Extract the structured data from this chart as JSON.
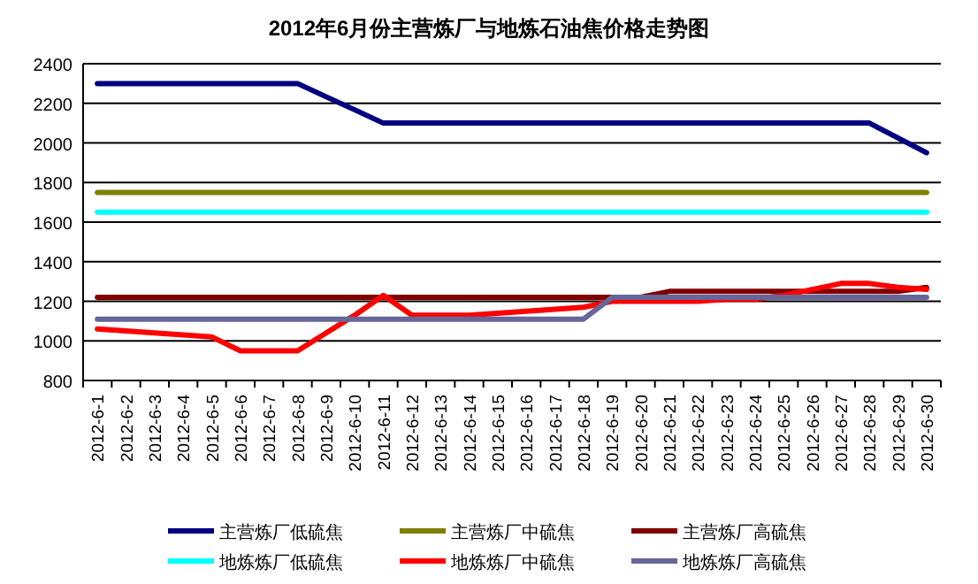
{
  "chart_data": {
    "type": "line",
    "title": "2012年6月份主营炼厂与地炼石油焦价格走势图",
    "categories": [
      "2012-6-1",
      "2012-6-2",
      "2012-6-3",
      "2012-6-4",
      "2012-6-5",
      "2012-6-6",
      "2012-6-7",
      "2012-6-8",
      "2012-6-9",
      "2012-6-10",
      "2012-6-11",
      "2012-6-12",
      "2012-6-13",
      "2012-6-14",
      "2012-6-15",
      "2012-6-16",
      "2012-6-17",
      "2012-6-18",
      "2012-6-19",
      "2012-6-20",
      "2012-6-21",
      "2012-6-22",
      "2012-6-23",
      "2012-6-24",
      "2012-6-25",
      "2012-6-26",
      "2012-6-27",
      "2012-6-28",
      "2012-6-29",
      "2012-6-30"
    ],
    "series": [
      {
        "name": "主营炼厂低硫焦",
        "color": "#000080",
        "values": [
          2300,
          2300,
          2300,
          2300,
          2300,
          2300,
          2300,
          2300,
          2233,
          2167,
          2100,
          2100,
          2100,
          2100,
          2100,
          2100,
          2100,
          2100,
          2100,
          2100,
          2100,
          2100,
          2100,
          2100,
          2100,
          2100,
          2100,
          2100,
          2025,
          1950
        ]
      },
      {
        "name": "主营炼厂中硫焦",
        "color": "#808000",
        "values": [
          1750,
          1750,
          1750,
          1750,
          1750,
          1750,
          1750,
          1750,
          1750,
          1750,
          1750,
          1750,
          1750,
          1750,
          1750,
          1750,
          1750,
          1750,
          1750,
          1750,
          1750,
          1750,
          1750,
          1750,
          1750,
          1750,
          1750,
          1750,
          1750,
          1750
        ]
      },
      {
        "name": "主营炼厂高硫焦",
        "color": "#800000",
        "values": [
          1220,
          1220,
          1220,
          1220,
          1220,
          1220,
          1220,
          1220,
          1220,
          1220,
          1220,
          1220,
          1220,
          1220,
          1220,
          1220,
          1220,
          1220,
          1220,
          1220,
          1250,
          1250,
          1250,
          1250,
          1250,
          1250,
          1250,
          1250,
          1250,
          1270
        ]
      },
      {
        "name": "地炼炼厂低硫焦",
        "color": "#00ffff",
        "values": [
          1650,
          1650,
          1650,
          1650,
          1650,
          1650,
          1650,
          1650,
          1650,
          1650,
          1650,
          1650,
          1650,
          1650,
          1650,
          1650,
          1650,
          1650,
          1650,
          1650,
          1650,
          1650,
          1650,
          1650,
          1650,
          1650,
          1650,
          1650,
          1650,
          1650
        ]
      },
      {
        "name": "地炼炼厂中硫焦",
        "color": "#ff0000",
        "values": [
          1060,
          1050,
          1040,
          1030,
          1020,
          950,
          950,
          950,
          1040,
          1130,
          1230,
          1130,
          1130,
          1130,
          1140,
          1150,
          1160,
          1170,
          1200,
          1200,
          1200,
          1200,
          1210,
          1210,
          1230,
          1260,
          1290,
          1290,
          1270,
          1260
        ]
      },
      {
        "name": "地炼炼厂高硫焦",
        "color": "#666699",
        "values": [
          1110,
          1110,
          1110,
          1110,
          1110,
          1110,
          1110,
          1110,
          1110,
          1110,
          1110,
          1110,
          1110,
          1110,
          1110,
          1110,
          1110,
          1110,
          1220,
          1220,
          1220,
          1220,
          1220,
          1220,
          1220,
          1220,
          1220,
          1220,
          1220,
          1220
        ]
      }
    ],
    "ylim": [
      800,
      2400
    ],
    "yticks": [
      800,
      1000,
      1200,
      1400,
      1600,
      1800,
      2000,
      2200,
      2400
    ],
    "grid": "y",
    "legend": "bottom"
  }
}
